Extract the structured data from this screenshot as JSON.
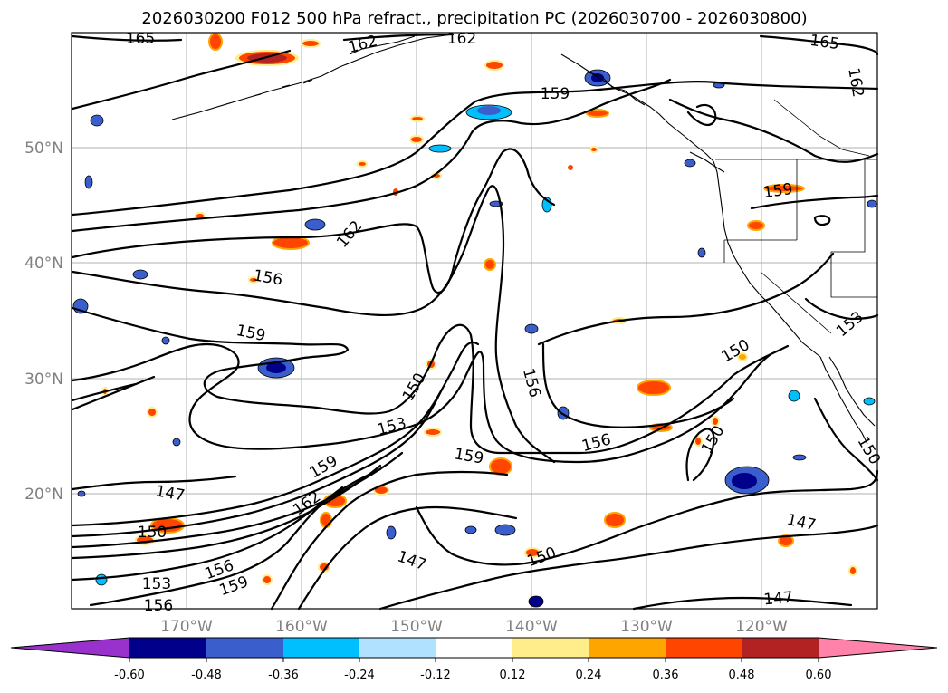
{
  "title": "2026030200 F012 500 hPa refract., precipitation PC (2026030700 - 2026030800)",
  "lat_labels": [
    "50°N",
    "40°N",
    "30°N",
    "20°N"
  ],
  "lon_labels": [
    "170°W",
    "160°W",
    "150°W",
    "140°W",
    "130°W",
    "120°W"
  ],
  "contour_labels": [
    "165",
    "162",
    "162",
    "165",
    "162",
    "159",
    "162",
    "156",
    "159",
    "150",
    "156",
    "153",
    "159",
    "159",
    "162",
    "150",
    "150",
    "159",
    "153",
    "147",
    "150",
    "156",
    "156",
    "159",
    "153",
    "156",
    "147",
    "150",
    "150",
    "147",
    "147",
    "153"
  ],
  "colorbar": {
    "ticks": [
      "-0.60",
      "-0.48",
      "-0.36",
      "-0.24",
      "-0.12",
      "0.12",
      "0.24",
      "0.36",
      "0.48",
      "0.60"
    ],
    "colors": [
      "#9932CC",
      "#00008B",
      "#3A5FCD",
      "#00BFFF",
      "#B0E2FF",
      "#FFFFFF",
      "#FFEC8B",
      "#FFA500",
      "#FF4500",
      "#B22222",
      "#FF82AB"
    ]
  },
  "map": {
    "lat_range": [
      10,
      60
    ],
    "lon_range": [
      -180,
      -110
    ],
    "gridlines": true,
    "contour_interval": 3
  }
}
